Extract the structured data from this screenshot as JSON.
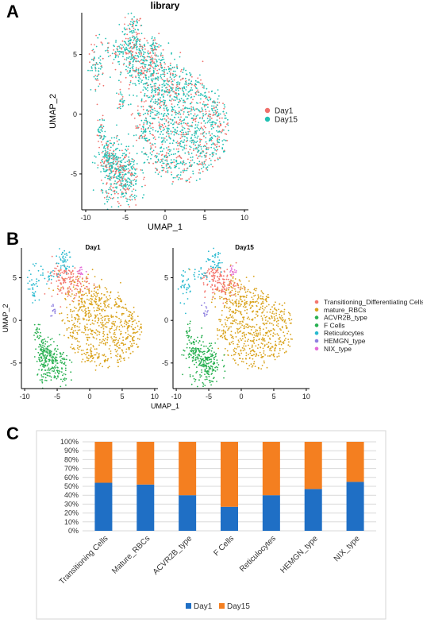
{
  "panels": {
    "a": {
      "letter": "A"
    },
    "b": {
      "letter": "B"
    },
    "c": {
      "letter": "C"
    }
  },
  "colors": {
    "day1": "#f0706b",
    "day15": "#21c0b3",
    "bar_day1": "#1f6fc5",
    "bar_day15": "#f47f20",
    "cluster_transitioning": "#f4766e",
    "cluster_mature": "#d9a21b",
    "cluster_acvr2b": "#2ab050",
    "cluster_fcells": "#27b050",
    "cluster_reticulocytes": "#26b9cf",
    "cluster_hemgn": "#8e7fe0",
    "cluster_nix": "#e46ad8"
  },
  "chart_data": [
    {
      "type": "scatter",
      "panel": "A",
      "title": "library",
      "xlabel": "UMAP_1",
      "ylabel": "UMAP_2",
      "xlim": [
        -10.5,
        10.5
      ],
      "ylim": [
        -8,
        8.5
      ],
      "xticks": [
        -10,
        -5,
        0,
        5,
        10
      ],
      "yticks": [
        -5,
        0,
        5
      ],
      "legend_position": "right",
      "series": [
        {
          "name": "Day1",
          "color": "#f0706b"
        },
        {
          "name": "Day15",
          "color": "#21c0b3"
        }
      ]
    },
    {
      "type": "scatter",
      "panel": "B",
      "facets": [
        "Day1",
        "Day15"
      ],
      "xlabel": "UMAP_1",
      "ylabel": "UMAP_2",
      "xlim": [
        -10.5,
        10.5
      ],
      "ylim": [
        -8,
        8.5
      ],
      "xticks": [
        -10,
        -5,
        0,
        5,
        10
      ],
      "yticks": [
        -5,
        0,
        5
      ],
      "legend_position": "right",
      "series": [
        {
          "name": "Transitioning_Differentiating Cells",
          "color": "#f4766e"
        },
        {
          "name": "mature_RBCs",
          "color": "#d9a21b"
        },
        {
          "name": "ACVR2B_type",
          "color": "#2ab050"
        },
        {
          "name": "F Cells",
          "color": "#27b050"
        },
        {
          "name": "Reticulocytes",
          "color": "#26b9cf"
        },
        {
          "name": "HEMGN_type",
          "color": "#8e7fe0"
        },
        {
          "name": "NIX_type",
          "color": "#e46ad8"
        }
      ]
    },
    {
      "type": "bar",
      "stacked": true,
      "panel": "C",
      "categories": [
        "Transitioning Cells",
        "Mature_RBCs",
        "ACVR2B_type",
        "F Cells",
        "Reticulocytes",
        "HEMGN_type",
        "NIX_type"
      ],
      "yticks": [
        "0%",
        "10%",
        "20%",
        "30%",
        "40%",
        "50%",
        "60%",
        "70%",
        "80%",
        "90%",
        "100%"
      ],
      "ylim": [
        0,
        100
      ],
      "grid": true,
      "legend_position": "bottom",
      "series": [
        {
          "name": "Day1",
          "color": "#1f6fc5",
          "values": [
            54,
            52,
            40,
            27,
            40,
            47,
            55
          ]
        },
        {
          "name": "Day15",
          "color": "#f47f20",
          "values": [
            46,
            48,
            60,
            73,
            60,
            53,
            45
          ]
        }
      ]
    }
  ]
}
